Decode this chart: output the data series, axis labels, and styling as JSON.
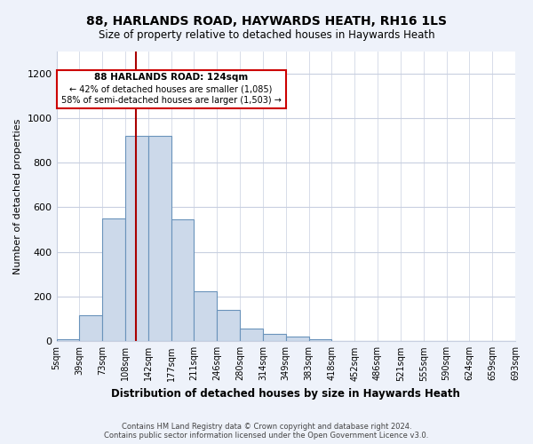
{
  "title": "88, HARLANDS ROAD, HAYWARDS HEATH, RH16 1LS",
  "subtitle": "Size of property relative to detached houses in Haywards Heath",
  "xlabel": "Distribution of detached houses by size in Haywards Heath",
  "ylabel": "Number of detached properties",
  "bar_values": [
    10,
    115,
    550,
    920,
    920,
    545,
    225,
    140,
    55,
    35,
    20,
    10,
    0,
    0,
    0,
    0,
    0,
    0,
    0,
    0
  ],
  "bin_labels": [
    "5sqm",
    "39sqm",
    "73sqm",
    "108sqm",
    "142sqm",
    "177sqm",
    "211sqm",
    "246sqm",
    "280sqm",
    "314sqm",
    "349sqm",
    "383sqm",
    "418sqm",
    "452sqm",
    "486sqm",
    "521sqm",
    "555sqm",
    "590sqm",
    "624sqm",
    "659sqm",
    "693sqm"
  ],
  "bar_color": "#ccd9ea",
  "bar_edge_color": "#6a93bb",
  "vline_bin_index": 3,
  "annotation_line_label": "88 HARLANDS ROAD: 124sqm",
  "annotation_text_line2": "← 42% of detached houses are smaller (1,085)",
  "annotation_text_line3": "58% of semi-detached houses are larger (1,503) →",
  "annotation_box_color": "#cc0000",
  "vline_color": "#aa0000",
  "ylim": [
    0,
    1300
  ],
  "yticks": [
    0,
    200,
    400,
    600,
    800,
    1000,
    1200
  ],
  "footer_text": "Contains HM Land Registry data © Crown copyright and database right 2024.\nContains public sector information licensed under the Open Government Licence v3.0.",
  "background_color": "#eef2fa",
  "plot_bg_color": "#ffffff",
  "grid_color": "#c8cfe0"
}
